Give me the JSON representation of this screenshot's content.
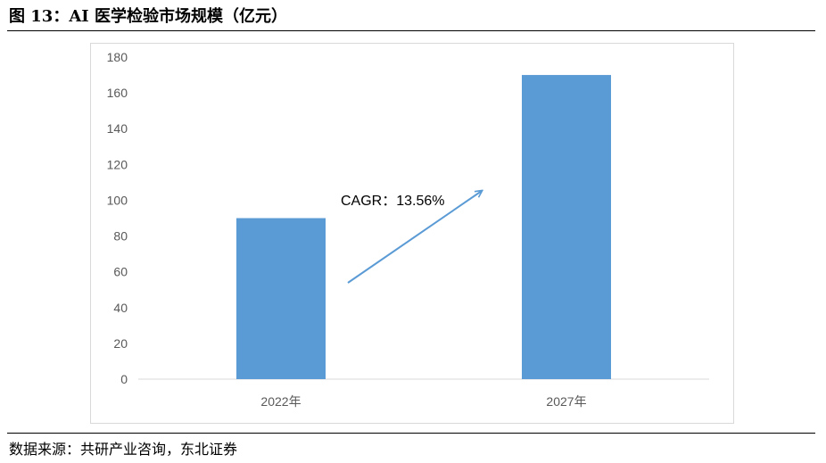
{
  "figure": {
    "title": "图 13：AI 医学检验市场规模（亿元）",
    "source": "数据来源：共研产业咨询，东北证券"
  },
  "chart_data": {
    "type": "bar",
    "categories": [
      "2022年",
      "2027年"
    ],
    "values": [
      90,
      170
    ],
    "ylim": [
      0,
      180
    ],
    "yticks": [
      0,
      20,
      40,
      60,
      80,
      100,
      120,
      140,
      160,
      180
    ],
    "grid": false,
    "bar_color": "#5b9bd5",
    "annotation": {
      "text": "CAGR：13.56%",
      "arrow_color": "#5b9bd5"
    }
  }
}
